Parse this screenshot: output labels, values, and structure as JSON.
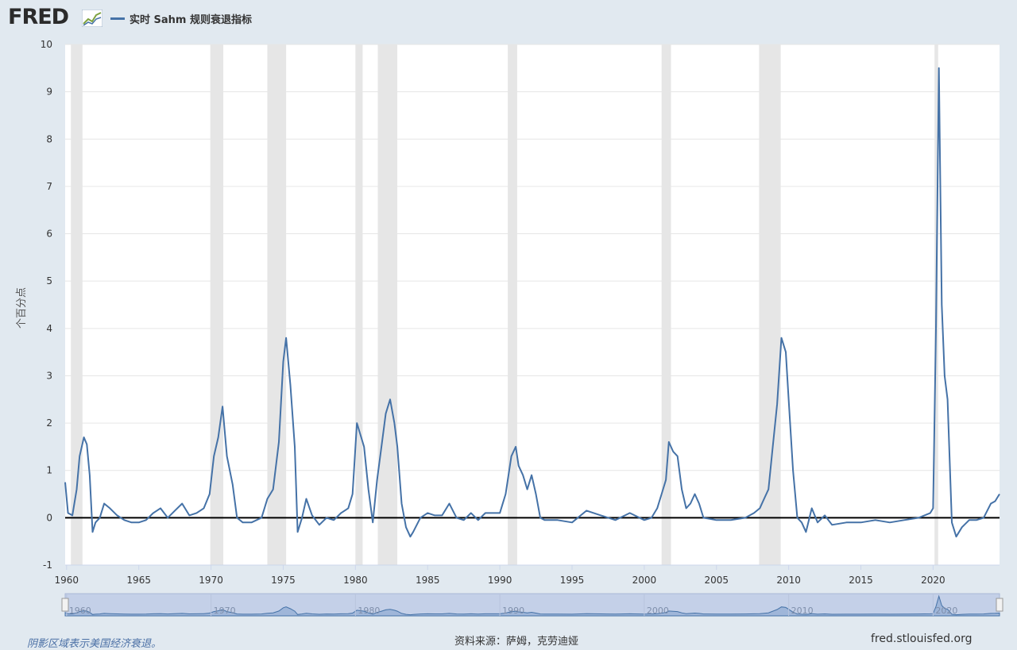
{
  "header": {
    "logo_text": "FRED",
    "logo_icon": "chart-line-icon"
  },
  "footer": {
    "note": "阴影区域表示美国经济衰退。",
    "source": "资料来源：萨姆，克劳迪娅",
    "site": "fred.stlouisfed.org"
  },
  "colors": {
    "line": "#4572a7",
    "recession": "#e6e6e6",
    "navigator": "#9fb6d9"
  },
  "chart_data": {
    "type": "line",
    "title": "",
    "xlabel": "",
    "ylabel": "个百分点",
    "ylim": [
      -1,
      10
    ],
    "xlim": [
      1959.9,
      2024.6
    ],
    "grid": true,
    "legend_position": "top-left",
    "y_ticks": [
      -1,
      0,
      1,
      2,
      3,
      4,
      5,
      6,
      7,
      8,
      9,
      10
    ],
    "x_ticks": [
      1960,
      1965,
      1970,
      1975,
      1980,
      1985,
      1990,
      1995,
      2000,
      2005,
      2010,
      2015,
      2020
    ],
    "navigator_ticks": [
      1960,
      1970,
      1980,
      1990,
      2000,
      2010,
      2020
    ],
    "recessions": [
      [
        1960.3,
        1961.1
      ],
      [
        1969.95,
        1970.85
      ],
      [
        1973.9,
        1975.2
      ],
      [
        1980.0,
        1980.5
      ],
      [
        1981.55,
        1982.9
      ],
      [
        1990.55,
        1991.2
      ],
      [
        2001.2,
        2001.85
      ],
      [
        2007.95,
        2009.45
      ],
      [
        2020.1,
        2020.35
      ]
    ],
    "series": [
      {
        "name": "实时 Sahm 规则衰退指标",
        "x": [
          1959.9,
          1960.1,
          1960.4,
          1960.7,
          1960.9,
          1961.2,
          1961.4,
          1961.6,
          1961.8,
          1962.0,
          1962.3,
          1962.6,
          1963.0,
          1963.5,
          1964.0,
          1964.5,
          1965.0,
          1965.5,
          1966.0,
          1966.5,
          1967.0,
          1967.5,
          1968.0,
          1968.5,
          1969.0,
          1969.5,
          1969.9,
          1970.2,
          1970.5,
          1970.8,
          1971.1,
          1971.5,
          1971.8,
          1972.2,
          1972.8,
          1973.5,
          1973.9,
          1974.3,
          1974.7,
          1975.0,
          1975.2,
          1975.5,
          1975.8,
          1976.0,
          1976.3,
          1976.6,
          1977.0,
          1977.5,
          1978.0,
          1978.5,
          1979.0,
          1979.5,
          1979.8,
          1980.1,
          1980.3,
          1980.6,
          1980.9,
          1981.2,
          1981.5,
          1981.8,
          1982.1,
          1982.4,
          1982.7,
          1982.9,
          1983.2,
          1983.5,
          1983.8,
          1984.0,
          1984.5,
          1985.0,
          1985.5,
          1986.0,
          1986.5,
          1987.0,
          1987.5,
          1988.0,
          1988.5,
          1989.0,
          1989.5,
          1990.0,
          1990.4,
          1990.8,
          1991.1,
          1991.3,
          1991.6,
          1991.9,
          1992.2,
          1992.5,
          1992.8,
          1993.1,
          1993.5,
          1994.0,
          1995.0,
          1996.0,
          1997.0,
          1998.0,
          1999.0,
          2000.0,
          2000.5,
          2000.9,
          2001.2,
          2001.5,
          2001.7,
          2002.0,
          2002.3,
          2002.6,
          2002.9,
          2003.2,
          2003.5,
          2003.8,
          2004.1,
          2005.0,
          2006.0,
          2007.0,
          2007.6,
          2008.0,
          2008.3,
          2008.6,
          2008.9,
          2009.2,
          2009.5,
          2009.8,
          2010.0,
          2010.3,
          2010.6,
          2010.9,
          2011.2,
          2011.6,
          2012.0,
          2012.5,
          2013.0,
          2014.0,
          2015.0,
          2016.0,
          2017.0,
          2018.0,
          2019.0,
          2019.8,
          2020.0,
          2020.2,
          2020.4,
          2020.6,
          2020.8,
          2021.0,
          2021.3,
          2021.6,
          2022.0,
          2022.5,
          2023.0,
          2023.5,
          2024.0,
          2024.3,
          2024.6
        ],
        "values": [
          0.75,
          0.1,
          0.05,
          0.6,
          1.3,
          1.7,
          1.55,
          0.9,
          -0.3,
          -0.1,
          0.0,
          0.3,
          0.2,
          0.05,
          -0.05,
          -0.1,
          -0.1,
          -0.05,
          0.1,
          0.2,
          0.0,
          0.15,
          0.3,
          0.05,
          0.1,
          0.2,
          0.5,
          1.3,
          1.7,
          2.35,
          1.3,
          0.7,
          0.0,
          -0.1,
          -0.1,
          0.0,
          0.4,
          0.6,
          1.6,
          3.3,
          3.8,
          2.8,
          1.5,
          -0.3,
          0.0,
          0.4,
          0.05,
          -0.15,
          0.0,
          -0.05,
          0.1,
          0.2,
          0.5,
          2.0,
          1.8,
          1.5,
          0.6,
          -0.1,
          0.8,
          1.5,
          2.2,
          2.5,
          2.0,
          1.5,
          0.3,
          -0.2,
          -0.4,
          -0.3,
          0.0,
          0.1,
          0.05,
          0.05,
          0.3,
          0.0,
          -0.05,
          0.1,
          -0.05,
          0.1,
          0.1,
          0.1,
          0.5,
          1.3,
          1.5,
          1.1,
          0.9,
          0.6,
          0.9,
          0.5,
          0.0,
          -0.05,
          -0.05,
          -0.05,
          -0.1,
          0.15,
          0.05,
          -0.05,
          0.1,
          -0.05,
          0.0,
          0.2,
          0.5,
          0.8,
          1.6,
          1.4,
          1.3,
          0.6,
          0.2,
          0.3,
          0.5,
          0.3,
          0.0,
          -0.05,
          -0.05,
          0.0,
          0.1,
          0.2,
          0.4,
          0.6,
          1.5,
          2.4,
          3.8,
          3.5,
          2.5,
          1.0,
          0.0,
          -0.1,
          -0.3,
          0.2,
          -0.1,
          0.05,
          -0.15,
          -0.1,
          -0.1,
          -0.05,
          -0.1,
          -0.05,
          0.0,
          0.1,
          0.2,
          4.0,
          9.5,
          4.5,
          3.0,
          2.5,
          -0.1,
          -0.4,
          -0.2,
          -0.05,
          -0.05,
          0.0,
          0.3,
          0.35,
          0.5
        ]
      }
    ]
  }
}
